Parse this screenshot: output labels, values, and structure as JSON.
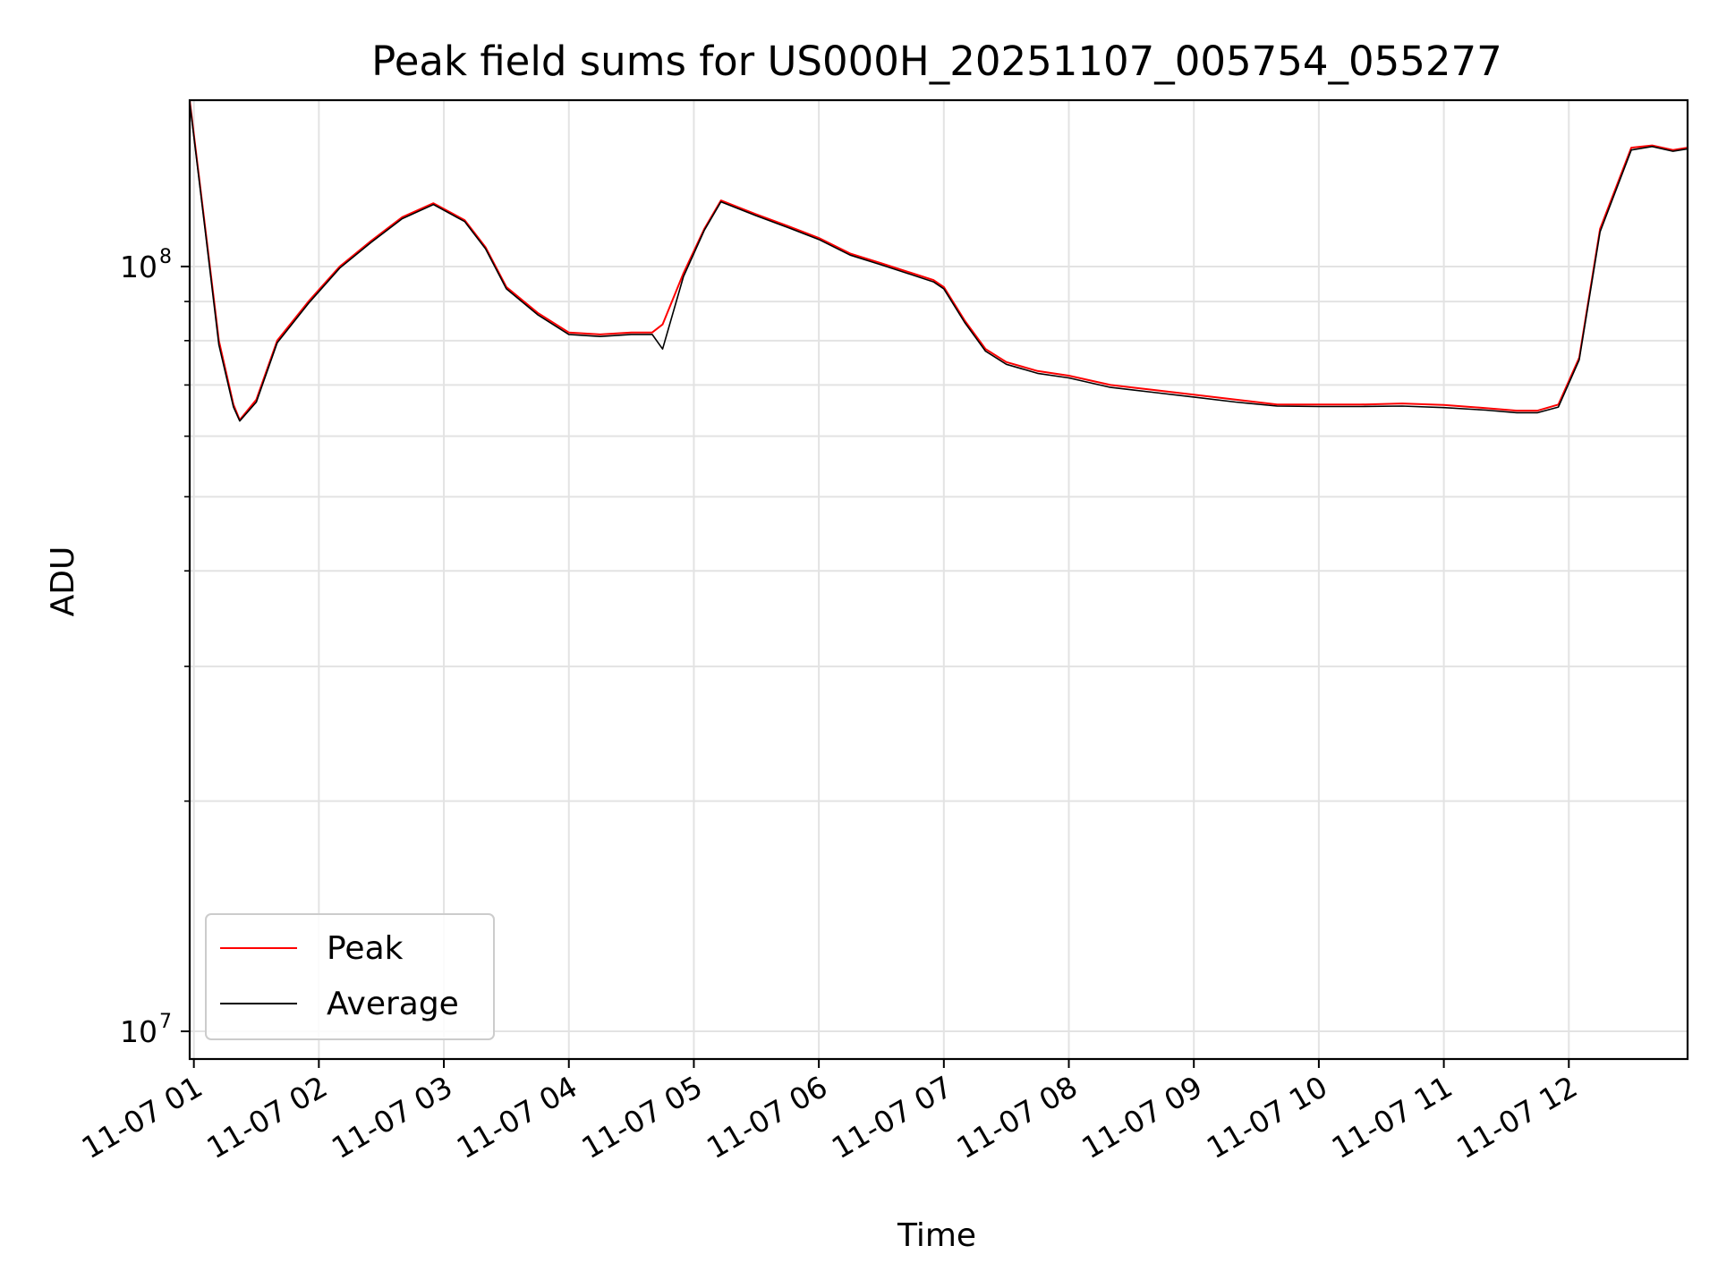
{
  "chart_data": {
    "type": "line",
    "title": "Peak field sums for US000H_20251107_005754_055277",
    "xlabel": "Time",
    "ylabel": "ADU",
    "yscale": "log",
    "ylim": [
      9200000,
      165000000
    ],
    "xlim": [
      "11-07 00:58",
      "11-07 12:57"
    ],
    "x_ticks": [
      "11-07 01",
      "11-07 02",
      "11-07 03",
      "11-07 04",
      "11-07 05",
      "11-07 06",
      "11-07 07",
      "11-07 08",
      "11-07 09",
      "11-07 10",
      "11-07 11",
      "11-07 12"
    ],
    "y_ticks": [
      {
        "base": "10",
        "exponent": "7",
        "value": 10000000
      },
      {
        "base": "10",
        "exponent": "8",
        "value": 100000000
      }
    ],
    "grid": true,
    "legend_position": "lower-left",
    "colors": {
      "peak": "#ff0000",
      "average": "#000000",
      "grid": "#e3e3e3"
    },
    "series": [
      {
        "name": "Peak",
        "color": "#ff0000",
        "x": [
          "11-07 00:58",
          "11-07 01:05",
          "11-07 01:12",
          "11-07 01:19",
          "11-07 01:22",
          "11-07 01:30",
          "11-07 01:40",
          "11-07 01:55",
          "11-07 02:10",
          "11-07 02:25",
          "11-07 02:40",
          "11-07 02:55",
          "11-07 03:10",
          "11-07 03:20",
          "11-07 03:30",
          "11-07 03:45",
          "11-07 04:00",
          "11-07 04:15",
          "11-07 04:30",
          "11-07 04:40",
          "11-07 04:45",
          "11-07 04:55",
          "11-07 05:05",
          "11-07 05:13",
          "11-07 05:30",
          "11-07 05:45",
          "11-07 06:00",
          "11-07 06:15",
          "11-07 06:30",
          "11-07 06:55",
          "11-07 07:00",
          "11-07 07:10",
          "11-07 07:20",
          "11-07 07:30",
          "11-07 07:45",
          "11-07 08:00",
          "11-07 08:20",
          "11-07 08:40",
          "11-07 09:00",
          "11-07 09:20",
          "11-07 09:40",
          "11-07 10:00",
          "11-07 10:20",
          "11-07 10:40",
          "11-07 11:00",
          "11-07 11:20",
          "11-07 11:35",
          "11-07 11:45",
          "11-07 11:55",
          "11-07 12:05",
          "11-07 12:15",
          "11-07 12:30",
          "11-07 12:40",
          "11-07 12:50",
          "11-07 12:57"
        ],
        "values": [
          165000000,
          115000000,
          80000000,
          66000000,
          63000000,
          67000000,
          80000000,
          90000000,
          100000000,
          108000000,
          116000000,
          121000000,
          115000000,
          106000000,
          94000000,
          87000000,
          82000000,
          81500000,
          82000000,
          82000000,
          84000000,
          98000000,
          112000000,
          122000000,
          117000000,
          113000000,
          109000000,
          104000000,
          101000000,
          96000000,
          94000000,
          85000000,
          78000000,
          75000000,
          73000000,
          72000000,
          70000000,
          69000000,
          68000000,
          67000000,
          66000000,
          66000000,
          66000000,
          66200000,
          65900000,
          65300000,
          64800000,
          64800000,
          66000000,
          76000000,
          112000000,
          143000000,
          144000000,
          142000000,
          143000000
        ]
      },
      {
        "name": "Average",
        "color": "#000000",
        "x": [
          "11-07 00:58",
          "11-07 01:05",
          "11-07 01:12",
          "11-07 01:19",
          "11-07 01:22",
          "11-07 01:30",
          "11-07 01:40",
          "11-07 01:55",
          "11-07 02:10",
          "11-07 02:25",
          "11-07 02:40",
          "11-07 02:55",
          "11-07 03:10",
          "11-07 03:20",
          "11-07 03:30",
          "11-07 03:45",
          "11-07 04:00",
          "11-07 04:15",
          "11-07 04:30",
          "11-07 04:40",
          "11-07 04:45",
          "11-07 04:55",
          "11-07 05:05",
          "11-07 05:13",
          "11-07 05:30",
          "11-07 05:45",
          "11-07 06:00",
          "11-07 06:15",
          "11-07 06:30",
          "11-07 06:55",
          "11-07 07:00",
          "11-07 07:10",
          "11-07 07:20",
          "11-07 07:30",
          "11-07 07:45",
          "11-07 08:00",
          "11-07 08:20",
          "11-07 08:40",
          "11-07 09:00",
          "11-07 09:20",
          "11-07 09:40",
          "11-07 10:00",
          "11-07 10:20",
          "11-07 10:40",
          "11-07 11:00",
          "11-07 11:20",
          "11-07 11:35",
          "11-07 11:45",
          "11-07 11:55",
          "11-07 12:05",
          "11-07 12:15",
          "11-07 12:30",
          "11-07 12:40",
          "11-07 12:50",
          "11-07 12:57"
        ],
        "values": [
          164000000,
          114000000,
          79000000,
          65500000,
          62800000,
          66500000,
          79500000,
          89500000,
          99500000,
          107500000,
          115500000,
          120500000,
          114500000,
          105500000,
          93500000,
          86500000,
          81500000,
          81000000,
          81500000,
          81500000,
          78000000,
          97000000,
          111500000,
          121500000,
          116500000,
          112500000,
          108500000,
          103500000,
          100500000,
          95500000,
          93500000,
          84500000,
          77500000,
          74500000,
          72500000,
          71500000,
          69500000,
          68500000,
          67500000,
          66500000,
          65700000,
          65600000,
          65600000,
          65700000,
          65400000,
          64900000,
          64400000,
          64400000,
          65500000,
          75500000,
          111000000,
          142000000,
          143500000,
          141500000,
          142500000
        ]
      }
    ]
  }
}
